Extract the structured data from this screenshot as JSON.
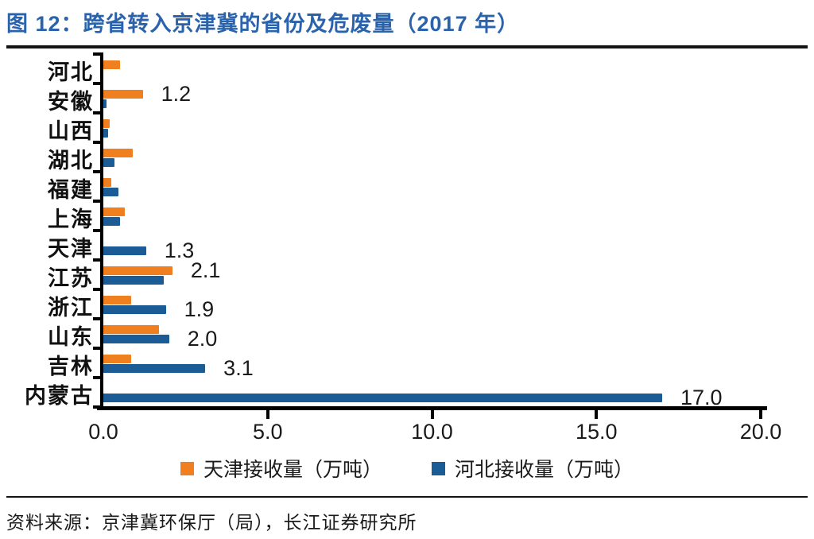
{
  "title": "图 12：跨省转入京津冀的省份及危废量（2017 年）",
  "source": "资料来源：京津冀环保厅（局），长江证券研究所",
  "colors": {
    "tianjin_orange": "#F0801F",
    "hebei_blue": "#1B5C97",
    "title_blue": "#2A63AB",
    "axis_black": "#000000"
  },
  "chart_data": {
    "type": "bar",
    "orientation": "horizontal",
    "title": "图 12：跨省转入京津冀的省份及危废量（2017 年）",
    "xlabel": "",
    "ylabel": "",
    "xlim": [
      0,
      20
    ],
    "x_ticks": [
      "0.0",
      "5.0",
      "10.0",
      "15.0",
      "20.0"
    ],
    "grid": false,
    "legend_position": "bottom",
    "categories": [
      "河北",
      "安徽",
      "山西",
      "湖北",
      "福建",
      "上海",
      "天津",
      "江苏",
      "浙江",
      "山东",
      "吉林",
      "内蒙古"
    ],
    "series": [
      {
        "name": "天津接收量（万吨）",
        "color": "#F0801F",
        "values": [
          0.5,
          1.2,
          0.2,
          0.9,
          0.25,
          0.65,
          0,
          2.1,
          0.85,
          1.7,
          0.85,
          0
        ]
      },
      {
        "name": "河北接收量（万吨）",
        "color": "#1B5C97",
        "values": [
          0,
          0.1,
          0.15,
          0.35,
          0.45,
          0.5,
          1.3,
          1.85,
          1.9,
          2.0,
          3.1,
          17.0
        ]
      }
    ],
    "data_labels": [
      {
        "category": "安徽",
        "series": "天津接收量（万吨）",
        "text": "1.2"
      },
      {
        "category": "天津",
        "series": "河北接收量（万吨）",
        "text": "1.3"
      },
      {
        "category": "江苏",
        "series": "天津接收量（万吨）",
        "text": "2.1"
      },
      {
        "category": "浙江",
        "series": "河北接收量（万吨）",
        "text": "1.9"
      },
      {
        "category": "山东",
        "series": "河北接收量（万吨）",
        "text": "2.0"
      },
      {
        "category": "吉林",
        "series": "河北接收量（万吨）",
        "text": "3.1"
      },
      {
        "category": "内蒙古",
        "series": "河北接收量（万吨）",
        "text": "17.0"
      }
    ]
  }
}
